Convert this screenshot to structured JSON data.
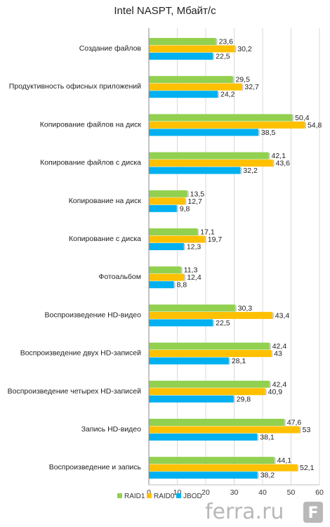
{
  "chart_data": {
    "type": "bar",
    "orientation": "horizontal",
    "title": "Intel NASPT, Мбайт/с",
    "categories": [
      "Создание файлов",
      "Продуктивность офисных приложений",
      "Копирование файлов на диск",
      "Копирование файлов с диска",
      "Копирование на диск",
      "Копирование с диска",
      "Фотоальбом",
      "Воспроизведение HD-видео",
      "Воспроизведение двух HD-записей",
      "Воспроизведение четырех HD-записей",
      "Запись HD-видео",
      "Воспроизведение и запись"
    ],
    "series": [
      {
        "name": "RAID1",
        "color": "#92d050",
        "values": [
          23.6,
          29.5,
          50.4,
          42.1,
          13.5,
          17.1,
          11.3,
          30.3,
          42.4,
          42.4,
          47.6,
          44.1
        ],
        "labels": [
          "23,6",
          "29,5",
          "50,4",
          "42,1",
          "13,5",
          "17,1",
          "11,3",
          "30,3",
          "42,4",
          "42,4",
          "47,6",
          "44,1"
        ]
      },
      {
        "name": "RAID0",
        "color": "#ffc000",
        "values": [
          30.2,
          32.7,
          54.8,
          43.6,
          12.7,
          19.7,
          12.4,
          43.4,
          43,
          40.9,
          53,
          52.1
        ],
        "labels": [
          "30,2",
          "32,7",
          "54,8",
          "43,6",
          "12,7",
          "19,7",
          "12,4",
          "43,4",
          "43",
          "40,9",
          "53",
          "52,1"
        ]
      },
      {
        "name": "JBOD",
        "color": "#00b0f0",
        "values": [
          22.5,
          24.2,
          38.5,
          32.2,
          9.8,
          12.3,
          8.8,
          22.5,
          28.1,
          29.8,
          38.1,
          38.2
        ],
        "labels": [
          "22,5",
          "24,2",
          "38,5",
          "32,2",
          "9,8",
          "12,3",
          "8,8",
          "22,5",
          "28,1",
          "29,8",
          "38,1",
          "38,2"
        ]
      }
    ],
    "xlim": [
      0,
      60
    ],
    "xticks": [
      "0",
      "10",
      "20",
      "30",
      "40",
      "50",
      "60"
    ],
    "grid": true,
    "legend_position": "bottom"
  },
  "watermark": "ferra.ru",
  "logo_letter": "F"
}
